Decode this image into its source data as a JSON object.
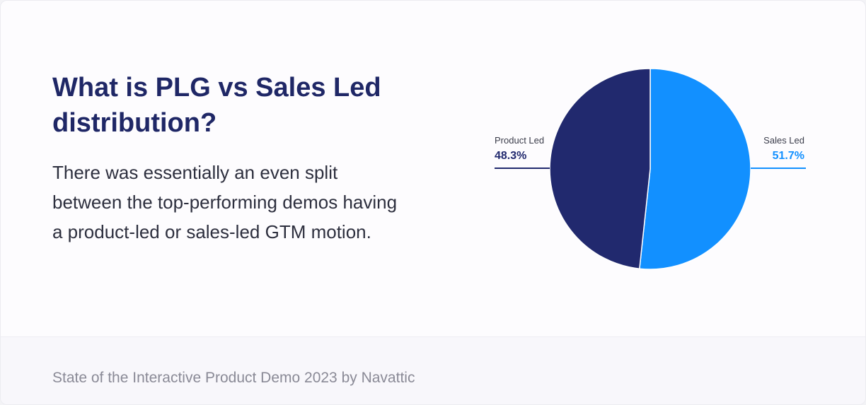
{
  "heading": "What is PLG vs Sales Led distribution?",
  "description": "There was essentially an even split between the top-performing demos having a product-led or sales-led GTM motion.",
  "footer": "State of the Interactive Product Demo 2023 by Navattic",
  "chart_data": {
    "type": "pie",
    "slices": [
      {
        "label": "Sales Led",
        "value": 51.7,
        "display": "51.7%",
        "color": "#1290ff",
        "side": "right"
      },
      {
        "label": "Product Led",
        "value": 48.3,
        "display": "48.3%",
        "color": "#21296e",
        "side": "left"
      }
    ],
    "start_angle": "12 o'clock",
    "direction": "clockwise"
  }
}
